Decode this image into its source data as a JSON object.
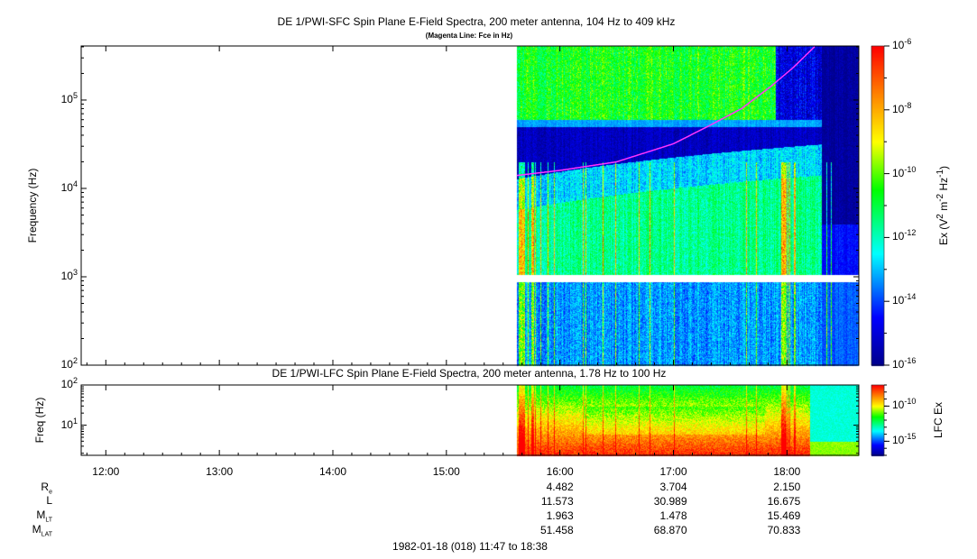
{
  "chart_data": [
    {
      "type": "heatmap",
      "title": "DE 1/PWI-SFC  Spin Plane E-Field Spectra, 200 meter antenna, 104 Hz to 409 kHz",
      "subtitle": "(Magenta Line: Fce in Hz)",
      "ylabel": "Frequency (Hz)",
      "yscale": "log",
      "ylim": [
        100,
        409000
      ],
      "yticks": [
        {
          "v": 100,
          "e": "2"
        },
        {
          "v": 1000,
          "e": "3"
        },
        {
          "v": 10000,
          "e": "4"
        },
        {
          "v": 100000,
          "e": "5"
        }
      ],
      "xlim_hours": [
        11.783,
        18.633
      ],
      "data_start_hour": 15.62,
      "colorbar": {
        "label": "Ex (V2 m-2 Hz-1)",
        "label_main": "Ex (V",
        "scale": "log",
        "range_exp": [
          -16,
          -6
        ],
        "ticks": [
          "-6",
          "-8",
          "-10",
          "-12",
          "-14",
          "-16"
        ]
      },
      "fce_line": {
        "color": "#ff33ff",
        "hours": [
          15.62,
          16.0,
          16.5,
          17.0,
          17.3,
          17.6,
          17.85,
          18.05,
          18.25
        ],
        "hz": [
          14000,
          16000,
          20000,
          32000,
          50000,
          80000,
          140000,
          230000,
          409000
        ]
      },
      "gap_band_hz": [
        880,
        1050
      ]
    },
    {
      "type": "heatmap",
      "title": "DE 1/PWI-LFC  Spin Plane E-Field Spectra, 200 meter antenna, 1.78 Hz to 100 Hz",
      "ylabel": "Freq (Hz)",
      "yscale": "log",
      "ylim": [
        1.78,
        100
      ],
      "yticks": [
        {
          "v": 10,
          "e": "1"
        },
        {
          "v": 100,
          "e": "2"
        }
      ],
      "colorbar": {
        "label": "LFC Ex",
        "scale": "log",
        "range_exp": [
          -17,
          -7
        ],
        "ticks": [
          "-10",
          "-15"
        ]
      }
    }
  ],
  "x_axis": {
    "ticks": [
      "12:00",
      "13:00",
      "14:00",
      "15:00",
      "16:00",
      "17:00",
      "18:00"
    ],
    "tick_hours": [
      12,
      13,
      14,
      15,
      16,
      17,
      18
    ]
  },
  "ephemeris": {
    "labels": {
      "re": "R",
      "re_sub": "e",
      "l": "L",
      "mlt": "M",
      "mlt_sub": "LT",
      "mlat": "M",
      "mlat_sub": "LAT"
    },
    "rows": {
      "re": [
        "4.482",
        "3.704",
        "2.150"
      ],
      "l": [
        "11.573",
        "30.989",
        "16.675"
      ],
      "mlt": [
        "1.963",
        "1.478",
        "15.469"
      ],
      "mlat": [
        "51.458",
        "68.870",
        "70.833"
      ]
    }
  },
  "footer": "1982-01-18 (018) 11:47 to 18:38"
}
